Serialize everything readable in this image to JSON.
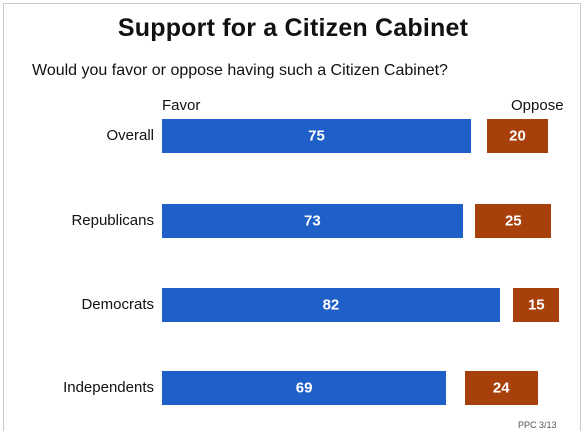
{
  "chart_data": {
    "type": "bar",
    "orientation": "horizontal",
    "stacked": false,
    "title": "Support for a Citizen Cabinet",
    "subtitle": "Would you favor or oppose having such a Citizen Cabinet?",
    "categories": [
      "Overall",
      "Republicans",
      "Democrats",
      "Independents"
    ],
    "series": [
      {
        "name": "Favor",
        "values": [
          75,
          73,
          82,
          69
        ],
        "color": "#1f5fc8"
      },
      {
        "name": "Oppose",
        "values": [
          20,
          25,
          15,
          24
        ],
        "color": "#a8400c"
      }
    ],
    "source_note": "PPC 3/13"
  }
}
